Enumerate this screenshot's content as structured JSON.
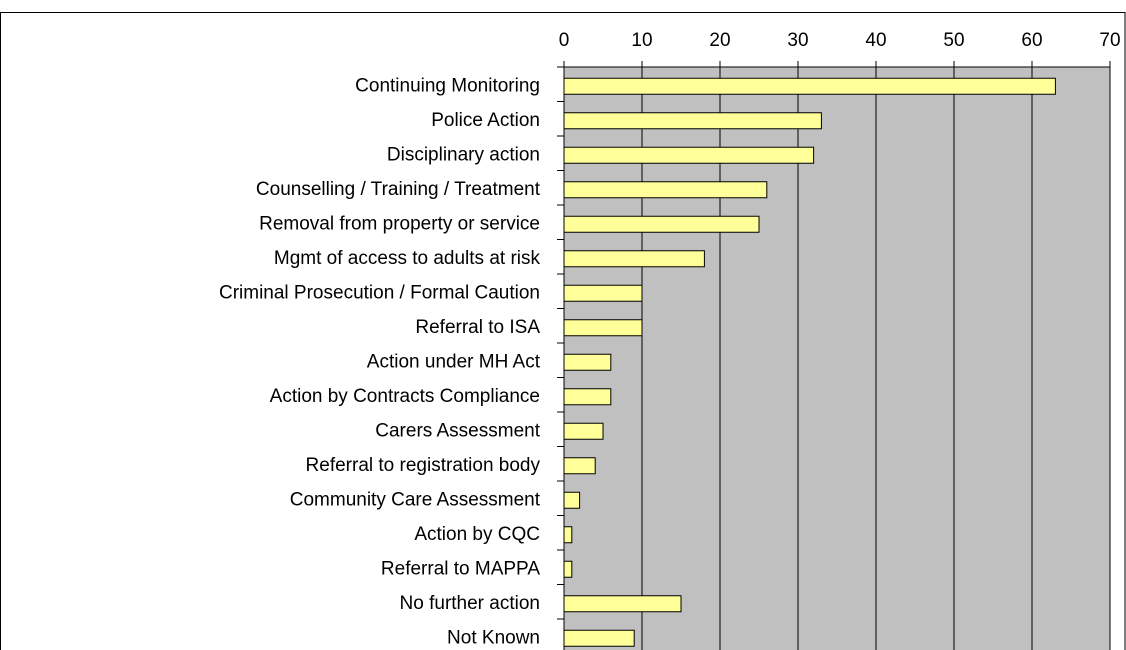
{
  "chart_data": {
    "type": "bar",
    "orientation": "horizontal",
    "categories": [
      "Continuing Monitoring",
      "Police Action",
      "Disciplinary action",
      "Counselling / Training / Treatment",
      "Removal from property or service",
      "Mgmt of access to adults at risk",
      "Criminal Prosecution / Formal Caution",
      "Referral to ISA",
      "Action under MH Act",
      "Action by Contracts Compliance",
      "Carers Assessment",
      "Referral to registration body",
      "Community Care Assessment",
      "Action by CQC",
      "Referral to MAPPA",
      "No further action",
      "Not Known"
    ],
    "values": [
      63,
      33,
      32,
      26,
      25,
      18,
      10,
      10,
      6,
      6,
      5,
      4,
      2,
      1,
      1,
      15,
      9
    ],
    "color": "#ffff99",
    "xlim": [
      0,
      70
    ],
    "xticks": [
      0,
      10,
      20,
      30,
      40,
      50,
      60,
      70
    ],
    "grid": true
  }
}
